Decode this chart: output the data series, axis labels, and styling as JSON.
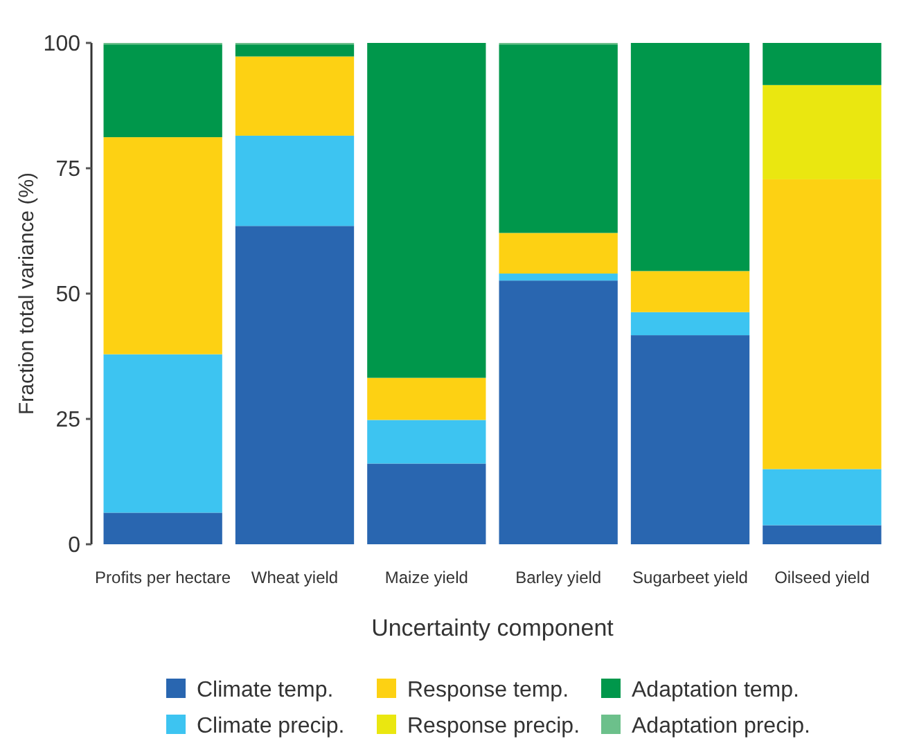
{
  "chart_data": {
    "type": "bar",
    "stacked": true,
    "xlabel": "Uncertainty component",
    "ylabel": "Fraction total variance (%)",
    "categories": [
      "Profits per hectare",
      "Wheat yield",
      "Maize yield",
      "Barley yield",
      "Sugarbeet yield",
      "Oilseed yield"
    ],
    "series": [
      {
        "name": "Climate temp.",
        "color": "#2966b0",
        "values": [
          6.3,
          63.5,
          16.1,
          52.6,
          41.7,
          3.8
        ]
      },
      {
        "name": "Climate precip.",
        "color": "#3dc4f1",
        "values": [
          31.6,
          18,
          8.7,
          1.4,
          4.6,
          11.2
        ]
      },
      {
        "name": "Response temp.",
        "color": "#fdd113",
        "values": [
          43.3,
          15.8,
          8.4,
          8.1,
          8.2,
          57.8
        ]
      },
      {
        "name": "Response precip.",
        "color": "#eae710",
        "values": [
          0,
          0,
          0,
          0,
          0,
          18.8
        ]
      },
      {
        "name": "Adaptation temp.",
        "color": "#00974b",
        "values": [
          18.5,
          2.4,
          66.8,
          37.6,
          45.5,
          8.4
        ]
      },
      {
        "name": "Adaptation precip.",
        "color": "#6cc08b",
        "values": [
          0.3,
          0.3,
          0,
          0.3,
          0,
          0
        ]
      }
    ],
    "ylim": [
      0,
      100
    ],
    "yticks": [
      0,
      25,
      50,
      75,
      100
    ],
    "grid": false,
    "legend": "bottom"
  }
}
